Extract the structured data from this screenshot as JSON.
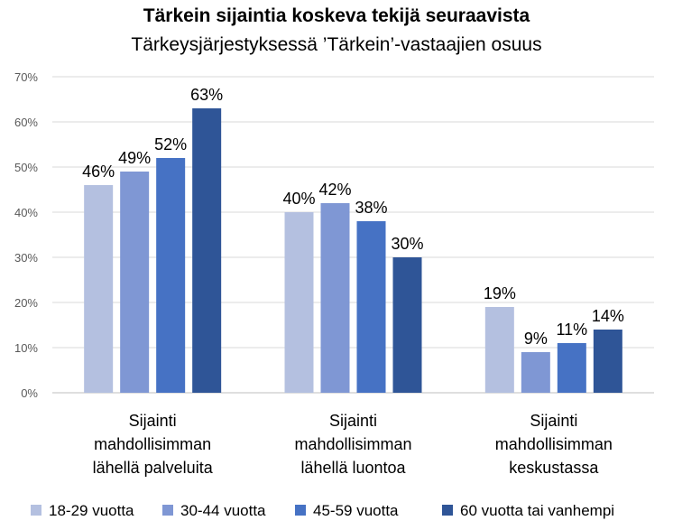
{
  "chart_data": {
    "type": "bar",
    "title": "Tärkein sijaintia koskeva tekijä seuraavista",
    "subtitle": "Tärkeysjärjestyksessä ’Tärkein’-vastaajien osuus",
    "categories": [
      [
        "Sijainti",
        "mahdollisimman",
        "lähellä palveluita"
      ],
      [
        "Sijainti",
        "mahdollisimman",
        "lähellä luontoa"
      ],
      [
        "Sijainti",
        "mahdollisimman",
        "keskustassa"
      ]
    ],
    "series": [
      {
        "name": "18-29 vuotta",
        "color": "#b4c0e0",
        "values": [
          46,
          40,
          19
        ],
        "labels": [
          "46%",
          "40%",
          "19%"
        ]
      },
      {
        "name": "30-44 vuotta",
        "color": "#7f97d4",
        "values": [
          49,
          42,
          9
        ],
        "labels": [
          "49%",
          "42%",
          "9%"
        ]
      },
      {
        "name": "45-59 vuotta",
        "color": "#4672c4",
        "values": [
          52,
          38,
          11
        ],
        "labels": [
          "52%",
          "38%",
          "11%"
        ]
      },
      {
        "name": "60 vuotta tai vanhempi",
        "color": "#2f5597",
        "values": [
          63,
          30,
          14
        ],
        "labels": [
          "63%",
          "30%",
          "14%"
        ]
      }
    ],
    "ylim": [
      0,
      70
    ],
    "yticks": [
      "0%",
      "10%",
      "20%",
      "30%",
      "40%",
      "50%",
      "60%",
      "70%"
    ],
    "grid": true,
    "legend": "bottom"
  }
}
